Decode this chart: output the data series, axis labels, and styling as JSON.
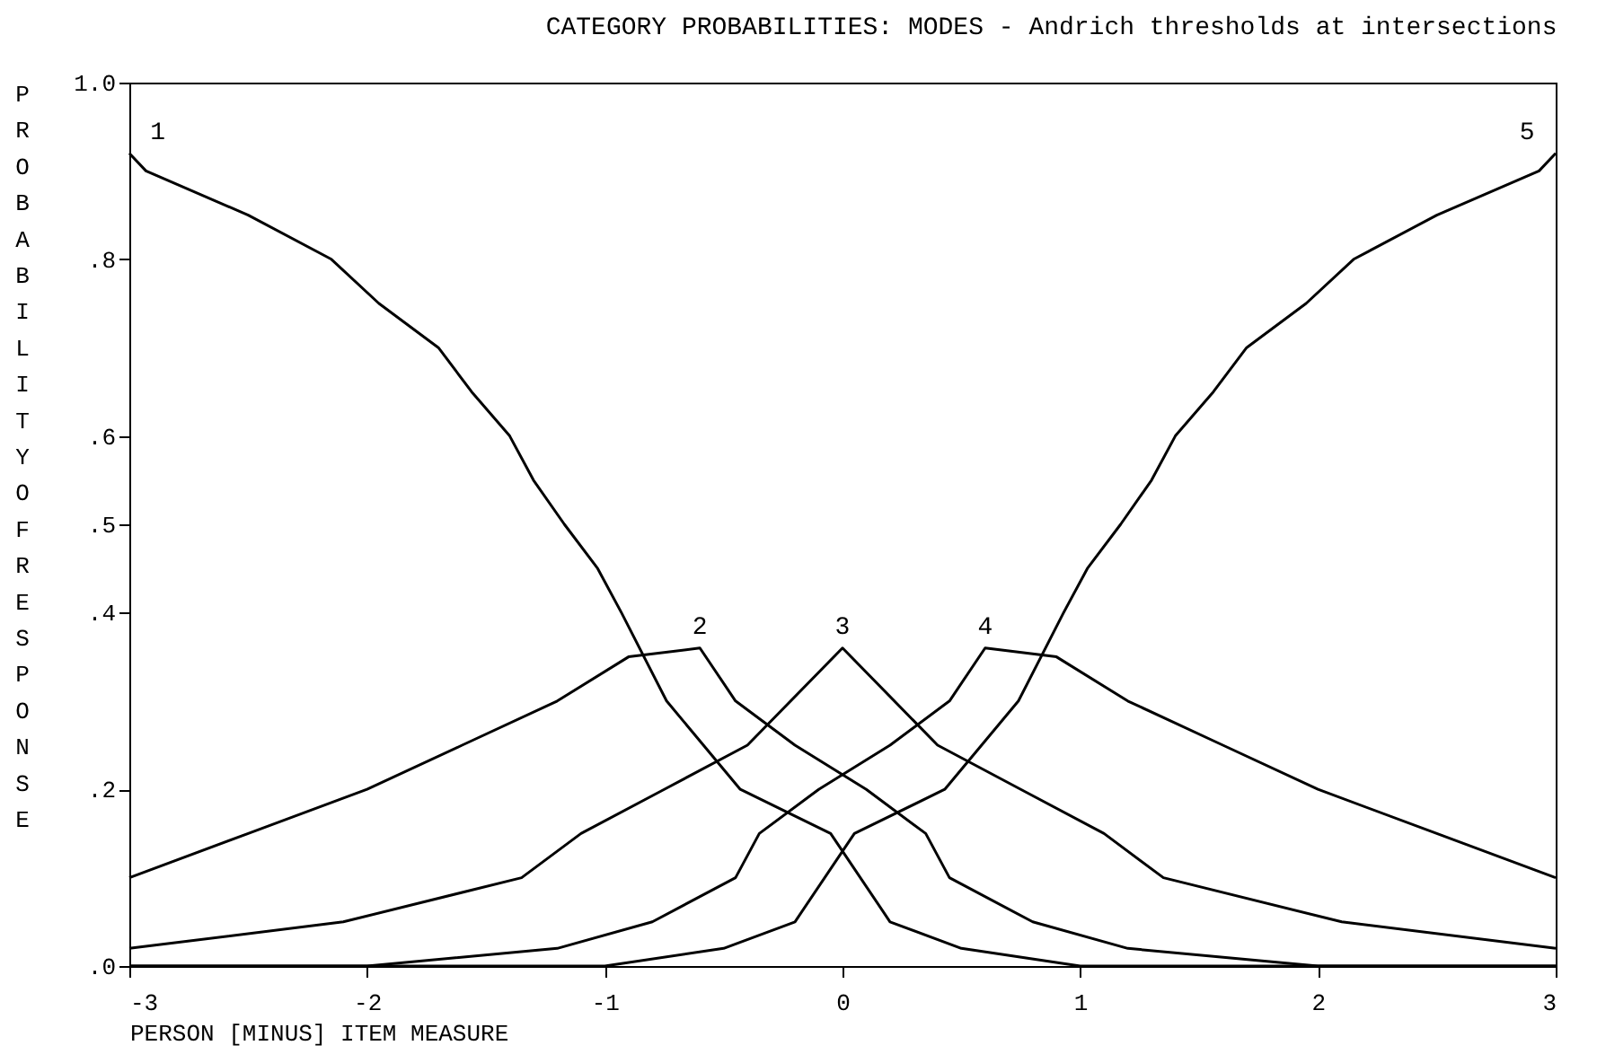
{
  "chart_data": {
    "type": "line",
    "title": "CATEGORY PROBABILITIES: MODES - Andrich thresholds at intersections",
    "xlabel": "PERSON [MINUS] ITEM MEASURE",
    "ylabel": "PROBABILITY OF RESPONSE",
    "xlim": [
      -3,
      3
    ],
    "xticks": [
      -3,
      -2,
      -1,
      0,
      1,
      2,
      3
    ],
    "ylim": [
      0,
      1
    ],
    "yticks": [
      {
        "value": 0,
        "label": ".0"
      },
      {
        "value": 0.2,
        "label": ".2"
      },
      {
        "value": 0.4,
        "label": ".4"
      },
      {
        "value": 0.5,
        "label": ".5"
      },
      {
        "value": 0.6,
        "label": ".6"
      },
      {
        "value": 0.8,
        "label": ".8"
      },
      {
        "value": 1,
        "label": "1.0"
      }
    ],
    "grid": false,
    "marker": "none",
    "line_style": "solid",
    "series": [
      {
        "name": "1",
        "color": "#000000",
        "x": [
          -3,
          -2.93,
          -2.5,
          -2.15,
          -1.95,
          -1.7,
          -1.56,
          -1.4,
          -1.3,
          -1.17,
          -1.03,
          -0.93,
          -0.74,
          -0.43,
          -0.05,
          0.2,
          0.5,
          1,
          2,
          3
        ],
        "values": [
          0.92,
          0.9,
          0.85,
          0.8,
          0.75,
          0.7,
          0.65,
          0.6,
          0.55,
          0.5,
          0.45,
          0.4,
          0.3,
          0.2,
          0.15,
          0.05,
          0.02,
          0,
          0,
          0
        ]
      },
      {
        "name": "2",
        "color": "#000000",
        "x": [
          -3,
          -2.5,
          -2,
          -1.6,
          -1.2,
          -0.9,
          -0.6,
          -0.45,
          -0.2,
          0.1,
          0.35,
          0.45,
          0.8,
          1.2,
          2,
          3
        ],
        "values": [
          0.1,
          0.15,
          0.2,
          0.25,
          0.3,
          0.35,
          0.36,
          0.3,
          0.25,
          0.2,
          0.15,
          0.1,
          0.05,
          0.02,
          0,
          0
        ]
      },
      {
        "name": "3",
        "color": "#000000",
        "x": [
          -3,
          -2.1,
          -1.35,
          -1.1,
          -0.75,
          -0.4,
          0,
          0.4,
          0.75,
          1.1,
          1.35,
          2.1,
          3
        ],
        "values": [
          0.02,
          0.05,
          0.1,
          0.15,
          0.2,
          0.25,
          0.36,
          0.25,
          0.2,
          0.15,
          0.1,
          0.05,
          0.02
        ]
      },
      {
        "name": "4",
        "color": "#000000",
        "x": [
          -3,
          -2,
          -1.2,
          -0.8,
          -0.45,
          -0.35,
          -0.1,
          0.2,
          0.45,
          0.6,
          0.9,
          1.2,
          1.6,
          2,
          2.5,
          3
        ],
        "values": [
          0,
          0,
          0.02,
          0.05,
          0.1,
          0.15,
          0.2,
          0.25,
          0.3,
          0.36,
          0.35,
          0.3,
          0.25,
          0.2,
          0.15,
          0.1
        ]
      },
      {
        "name": "5",
        "color": "#000000",
        "x": [
          -3,
          -2,
          -1,
          -0.5,
          -0.2,
          0.05,
          0.43,
          0.74,
          0.93,
          1.03,
          1.17,
          1.3,
          1.4,
          1.56,
          1.7,
          1.95,
          2.15,
          2.5,
          2.93,
          3
        ],
        "values": [
          0,
          0,
          0,
          0.02,
          0.05,
          0.15,
          0.2,
          0.3,
          0.4,
          0.45,
          0.5,
          0.55,
          0.6,
          0.65,
          0.7,
          0.75,
          0.8,
          0.85,
          0.9,
          0.92
        ]
      }
    ]
  }
}
